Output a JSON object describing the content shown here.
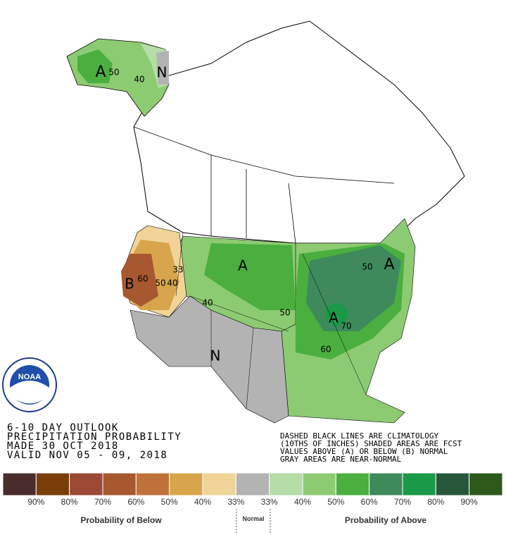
{
  "header": {
    "lines": [
      "6-10 DAY OUTLOOK",
      "PRECIPITATION PROBABILITY",
      "MADE  30 OCT 2018",
      "VALID  NOV 05 - 09, 2018"
    ]
  },
  "notes": [
    "DASHED BLACK LINES ARE CLIMATOLOGY",
    "(10THS OF INCHES) SHADED AREAS ARE FCST",
    "VALUES ABOVE (A) OR BELOW (B) NORMAL",
    "GRAY AREAS ARE NEAR-NORMAL"
  ],
  "logo": {
    "text": "NOAA"
  },
  "map_labels": [
    "A",
    "50",
    "40",
    "N",
    "B",
    "60",
    "50",
    "40",
    "33",
    "A",
    "40",
    "50",
    "A",
    "50",
    "A",
    "70",
    "60",
    "N"
  ],
  "legend": {
    "colors": [
      "#4a2c2c",
      "#7a3e0a",
      "#9c4a36",
      "#a8582f",
      "#c0713a",
      "#d8a54c",
      "#f0d497",
      "#b3b3b3",
      "#b6dca7",
      "#8dcb73",
      "#4aaf3e",
      "#3e8a5c",
      "#1a9a48",
      "#27573b",
      "#2d5a1b"
    ],
    "labels": [
      "90%",
      "80%",
      "70%",
      "60%",
      "50%",
      "40%",
      "33%",
      "33%",
      "40%",
      "50%",
      "60%",
      "70%",
      "80%",
      "90%"
    ],
    "below": "Probability of Below",
    "normal": "Normal",
    "above": "Probability of Above"
  }
}
